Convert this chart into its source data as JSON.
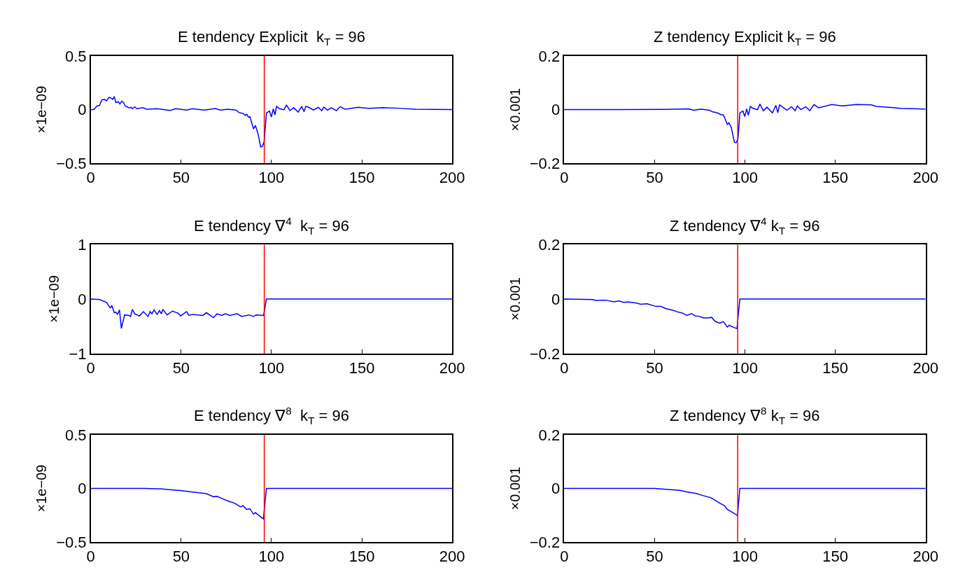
{
  "chart_data": [
    {
      "type": "line",
      "title": "E tendency Explicit  k$_{T}$ = 96",
      "ylabel": "×1e−09",
      "xlim": [
        0,
        200
      ],
      "xticks": [
        0,
        50,
        100,
        150,
        200
      ],
      "ylim": [
        -0.5,
        0.5
      ],
      "yticks": [
        {
          "value": -0.5,
          "label": "−0.5"
        },
        0,
        0.5
      ],
      "ref_lines": [
        {
          "axis": "x",
          "value": 96,
          "color": "#ff0000"
        }
      ],
      "series": [
        {
          "color": "#0000ff",
          "x": [
            0,
            1.6,
            3.5,
            4.8,
            6.1,
            7.4,
            8.7,
            10,
            11.3,
            12.2,
            13,
            13.9,
            15.2,
            16.1,
            17.2,
            18.1,
            19.1,
            21,
            22.4,
            23,
            24.3,
            25.6,
            28.9,
            30.8,
            36.7,
            43.9,
            47.1,
            53,
            56.2,
            62.7,
            69,
            71.8,
            75.7,
            80.3,
            82,
            84.2,
            85.5,
            86.4,
            87.2,
            88.1,
            90,
            91.1,
            92.6,
            94,
            95,
            95.9,
            97.2,
            98.9,
            99.9,
            101,
            101.9,
            102.8,
            104.4,
            107,
            108.3,
            110.2,
            112.2,
            114.8,
            116.7,
            118,
            119,
            120.6,
            123.2,
            125.8,
            127.8,
            129,
            131,
            133,
            135.9,
            138,
            140.8,
            148,
            153.8,
            161.6,
            170.7,
            179.8,
            200
          ],
          "values": [
            0,
            0,
            0.035,
            0.04,
            0.09,
            0.096,
            0.083,
            0.114,
            0.107,
            0.096,
            0.123,
            0.066,
            0.074,
            0.053,
            0.079,
            0.066,
            0.035,
            0.018,
            0.022,
            0.009,
            0.026,
            0.009,
            0.018,
            0.004,
            0.009,
            -0.007,
            0.009,
            -0.004,
            0.009,
            -0.004,
            0.011,
            -0.004,
            0.004,
            -0.004,
            -0.026,
            -0.035,
            -0.053,
            -0.044,
            -0.07,
            -0.066,
            -0.179,
            -0.147,
            -0.228,
            -0.348,
            -0.341,
            -0.298,
            -0.031,
            -0.013,
            -0.068,
            0.007,
            -0.048,
            0.031,
            0.009,
            0,
            0.044,
            -0.009,
            0.018,
            -0.022,
            0.031,
            -0.018,
            0.031,
            0.022,
            -0.004,
            0.022,
            -0.009,
            0.024,
            -0.004,
            0.018,
            -0.009,
            0.028,
            0.004,
            0.022,
            0.013,
            0.018,
            0.013,
            0.004,
            0
          ]
        }
      ]
    },
    {
      "type": "line",
      "title": "Z tendency Explicit k$_{T}$ = 96",
      "ylabel": "×0.001",
      "xlim": [
        0,
        200
      ],
      "xticks": [
        0,
        50,
        100,
        150,
        200
      ],
      "ylim": [
        -0.2,
        0.2
      ],
      "yticks": [
        {
          "value": -0.2,
          "label": "−0.2"
        },
        0,
        0.2
      ],
      "ref_lines": [
        {
          "axis": "x",
          "value": 96,
          "color": "#ff0000"
        }
      ],
      "series": [
        {
          "color": "#0000ff",
          "x": [
            0,
            30,
            55,
            69,
            71.8,
            75.7,
            80.3,
            82.2,
            84.2,
            85.5,
            86.8,
            88.1,
            90.3,
            91.1,
            92.4,
            94.2,
            95.2,
            96.2,
            97.2,
            98.9,
            99.9,
            101,
            101.9,
            103,
            104.4,
            107,
            108.3,
            110.2,
            112.2,
            115.2,
            117.1,
            118.2,
            119.2,
            120.6,
            123.2,
            125.8,
            127.8,
            129,
            131,
            133.7,
            135.9,
            138.2,
            140.8,
            148,
            153.8,
            161.6,
            170.1,
            172.7,
            179.8,
            186.3,
            200
          ],
          "values": [
            0,
            0,
            0.001,
            0.003,
            -0.002,
            0.002,
            -0.002,
            -0.008,
            -0.011,
            -0.014,
            -0.019,
            -0.019,
            -0.056,
            -0.049,
            -0.065,
            -0.122,
            -0.123,
            -0.107,
            -0.012,
            -0.005,
            -0.026,
            0.003,
            -0.021,
            0.012,
            0.005,
            0,
            0.021,
            -0.004,
            0.009,
            -0.012,
            0.016,
            -0.011,
            0.018,
            0.011,
            -0.002,
            0.011,
            -0.004,
            0.014,
            0,
            0.011,
            -0.004,
            0.019,
            0.007,
            0.019,
            0.014,
            0.019,
            0.018,
            0.012,
            0.009,
            0.005,
            0.002
          ]
        }
      ]
    },
    {
      "type": "line",
      "title": "E tendency ∇$^{4}$  k$_{T}$ = 96",
      "ylabel": "×1e−09",
      "xlim": [
        0,
        200
      ],
      "xticks": [
        0,
        50,
        100,
        150,
        200
      ],
      "ylim": [
        -1,
        1
      ],
      "yticks": [
        {
          "value": -1,
          "label": "−1"
        },
        0,
        1
      ],
      "ref_lines": [
        {
          "axis": "x",
          "value": 96,
          "color": "#ff0000"
        }
      ],
      "series": [
        {
          "color": "#0000ff",
          "x": [
            0,
            4.8,
            8.7,
            10.7,
            11.7,
            13,
            13.9,
            14.8,
            15.9,
            16.9,
            18.7,
            21,
            22,
            23,
            24.3,
            26.9,
            29.1,
            31.7,
            32.8,
            33.8,
            35,
            36.7,
            38,
            39,
            39.9,
            42.2,
            45.2,
            48.4,
            49.7,
            53,
            54.3,
            56.2,
            62.1,
            64,
            67.9,
            69.9,
            72.5,
            74.4,
            77,
            81,
            83.5,
            87.5,
            90,
            91.4,
            95.6,
            97.2,
            200
          ],
          "values": [
            0,
            -0.01,
            -0.06,
            -0.16,
            -0.12,
            -0.25,
            -0.24,
            -0.28,
            -0.2,
            -0.54,
            -0.29,
            -0.3,
            -0.32,
            -0.19,
            -0.27,
            -0.31,
            -0.23,
            -0.32,
            -0.23,
            -0.27,
            -0.2,
            -0.28,
            -0.21,
            -0.27,
            -0.19,
            -0.29,
            -0.22,
            -0.26,
            -0.31,
            -0.23,
            -0.3,
            -0.28,
            -0.3,
            -0.25,
            -0.34,
            -0.27,
            -0.3,
            -0.27,
            -0.3,
            -0.27,
            -0.32,
            -0.29,
            -0.32,
            -0.29,
            -0.3,
            0,
            0
          ]
        }
      ]
    },
    {
      "type": "line",
      "title": "Z tendency ∇$^{4}$ k$_{T}$ = 96",
      "ylabel": "×0.001",
      "xlim": [
        0,
        200
      ],
      "xticks": [
        0,
        50,
        100,
        150,
        200
      ],
      "ylim": [
        -0.2,
        0.2
      ],
      "yticks": [
        {
          "value": -0.2,
          "label": "−0.2"
        },
        0,
        0.2
      ],
      "ref_lines": [
        {
          "axis": "x",
          "value": 96,
          "color": "#ff0000"
        }
      ],
      "series": [
        {
          "color": "#0000ff",
          "x": [
            0,
            15.9,
            17.2,
            23,
            27.6,
            30.2,
            32.8,
            35.4,
            39.3,
            42.5,
            45.8,
            50.7,
            53.6,
            56.2,
            60,
            62.7,
            65.3,
            67.9,
            70.5,
            72.5,
            74.4,
            77,
            79.6,
            81.6,
            83.5,
            86.1,
            88.1,
            90.3,
            91.3,
            93.9,
            95.6,
            97.2,
            200
          ],
          "values": [
            0,
            -0.002,
            -0.005,
            -0.004,
            -0.01,
            -0.007,
            -0.012,
            -0.011,
            -0.014,
            -0.019,
            -0.017,
            -0.027,
            -0.027,
            -0.035,
            -0.041,
            -0.047,
            -0.051,
            -0.06,
            -0.053,
            -0.062,
            -0.063,
            -0.069,
            -0.069,
            -0.067,
            -0.082,
            -0.088,
            -0.083,
            -0.103,
            -0.096,
            -0.104,
            -0.108,
            0,
            0
          ]
        }
      ]
    },
    {
      "type": "line",
      "title": "E tendency ∇$^{8}$  k$_{T}$ = 96",
      "ylabel": "×1e−09",
      "xlim": [
        0,
        200
      ],
      "xticks": [
        0,
        50,
        100,
        150,
        200
      ],
      "ylim": [
        -0.5,
        0.5
      ],
      "yticks": [
        {
          "value": -0.5,
          "label": "−0.5"
        },
        0,
        0.5
      ],
      "ref_lines": [
        {
          "axis": "x",
          "value": 96,
          "color": "#ff0000"
        }
      ],
      "series": [
        {
          "color": "#0000ff",
          "x": [
            0,
            30,
            39.3,
            49.7,
            54.9,
            60,
            64,
            67.9,
            69.9,
            73.1,
            75.7,
            79.6,
            82.9,
            84.2,
            86.1,
            88.1,
            90,
            91.1,
            94,
            95.5,
            97.2,
            200
          ],
          "values": [
            0,
            0,
            -0.004,
            -0.02,
            -0.031,
            -0.04,
            -0.049,
            -0.077,
            -0.073,
            -0.097,
            -0.115,
            -0.137,
            -0.172,
            -0.159,
            -0.194,
            -0.19,
            -0.238,
            -0.225,
            -0.265,
            -0.283,
            0,
            0
          ]
        }
      ]
    },
    {
      "type": "line",
      "title": "Z tendency ∇$^{8}$ k$_{T}$ = 96",
      "ylabel": "×0.001",
      "xlim": [
        0,
        200
      ],
      "xticks": [
        0,
        50,
        100,
        150,
        200
      ],
      "ylim": [
        -0.2,
        0.2
      ],
      "yticks": [
        {
          "value": -0.2,
          "label": "−0.2"
        },
        0,
        0.2
      ],
      "ref_lines": [
        {
          "axis": "x",
          "value": 96,
          "color": "#ff0000"
        }
      ],
      "series": [
        {
          "color": "#0000ff",
          "x": [
            0,
            50,
            53.6,
            64.1,
            67.9,
            73.1,
            77,
            81,
            83.5,
            86.1,
            88.7,
            90.3,
            94,
            95.9,
            97.2,
            200
          ],
          "values": [
            0,
            0,
            -0.002,
            -0.007,
            -0.013,
            -0.019,
            -0.027,
            -0.034,
            -0.044,
            -0.055,
            -0.064,
            -0.078,
            -0.093,
            -0.101,
            0,
            0
          ]
        }
      ]
    }
  ]
}
